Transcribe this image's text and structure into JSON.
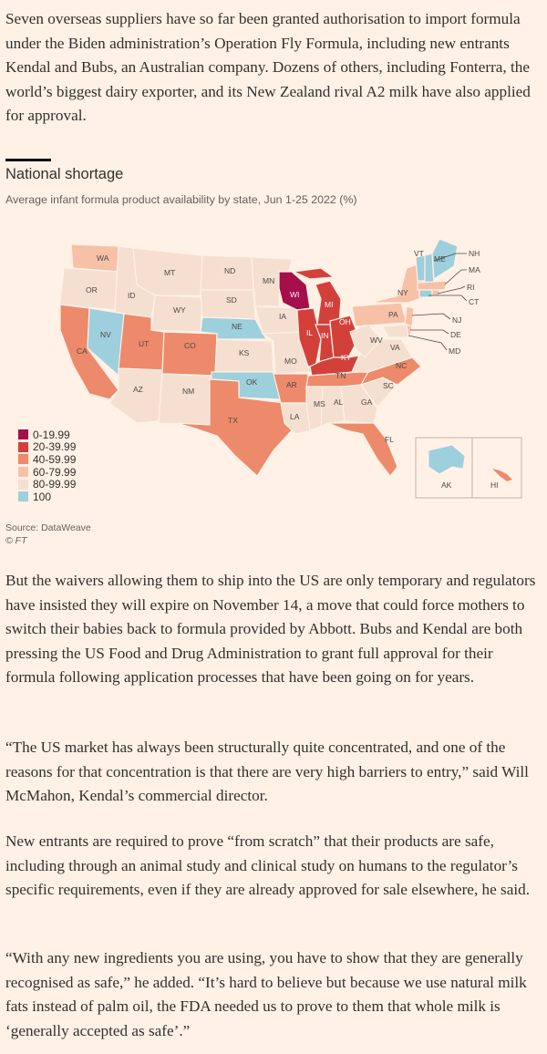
{
  "article": {
    "para1": "Seven overseas suppliers have so far been granted authorisation to import formula under the Biden administration’s Operation Fly Formula, including new entrants Kendal and Bubs, an Australian company. Dozens of others, including Fonterra, the world’s biggest dairy exporter, and its New Zealand rival A2 milk have also applied for approval.",
    "para2": "But the waivers allowing them to ship into the US are only temporary and regulators have insisted they will expire on November 14, a move that could force mothers to switch their babies back to formula provided by Abbott. Bubs and Kendal are both pressing the US Food and Drug Administration to grant full approval for their formula following application processes that have been going on for years.",
    "para3": "“The US market has always been structurally quite concentrated, and one of the reasons for that concentration is that there are very high barriers to entry,” said Will McMahon, Kendal’s commercial director.",
    "para4": "New entrants are required to prove “from scratch” that their products are safe, including through an animal study and clinical study on humans to the regulator’s specific requirements, even if they are already approved for sale elsewhere, he said.",
    "para5": "“With any new ingredients you are using, you have to show that they are generally recognised as safe,” he added. “It’s hard to believe but because we use natural milk fats instead of palm oil, the FDA needed us to prove to them that whole milk is ‘generally accepted as safe’.”"
  },
  "figure": {
    "title": "National shortage",
    "subtitle": "Average infant formula product availability by state, Jun 1-25 2022 (%)",
    "source": "Source: DataWeave",
    "credit": "© FT",
    "legend": [
      {
        "label": "0-19.99",
        "color": "#a50f4b"
      },
      {
        "label": "20-39.99",
        "color": "#d3403a"
      },
      {
        "label": "40-59.99",
        "color": "#ec8a6b"
      },
      {
        "label": "60-79.99",
        "color": "#f6c1a7"
      },
      {
        "label": "80-99.99",
        "color": "#f5dfd0"
      },
      {
        "label": "100",
        "color": "#9ecfdc"
      }
    ]
  },
  "map_labels": {
    "WA": "WA",
    "OR": "OR",
    "CA": "CA",
    "NV": "NV",
    "ID": "ID",
    "MT": "MT",
    "WY": "WY",
    "UT": "UT",
    "AZ": "AZ",
    "CO": "CO",
    "NM": "NM",
    "ND": "ND",
    "SD": "SD",
    "NE": "NE",
    "KS": "KS",
    "OK": "OK",
    "TX": "TX",
    "MN": "MN",
    "IA": "IA",
    "MO": "MO",
    "AR": "AR",
    "LA": "LA",
    "WI": "WI",
    "IL": "IL",
    "MI": "MI",
    "IN": "IN",
    "OH": "OH",
    "KY": "KY",
    "TN": "TN",
    "MS": "MS",
    "AL": "AL",
    "GA": "GA",
    "FL": "FL",
    "SC": "SC",
    "NC": "NC",
    "VA": "VA",
    "WV": "WV",
    "PA": "PA",
    "NY": "NY",
    "VT": "VT",
    "ME": "ME",
    "NH": "NH",
    "MA": "MA",
    "RI": "RI",
    "CT": "CT",
    "NJ": "NJ",
    "DE": "DE",
    "MD": "MD",
    "AK": "AK",
    "HI": "HI"
  }
}
